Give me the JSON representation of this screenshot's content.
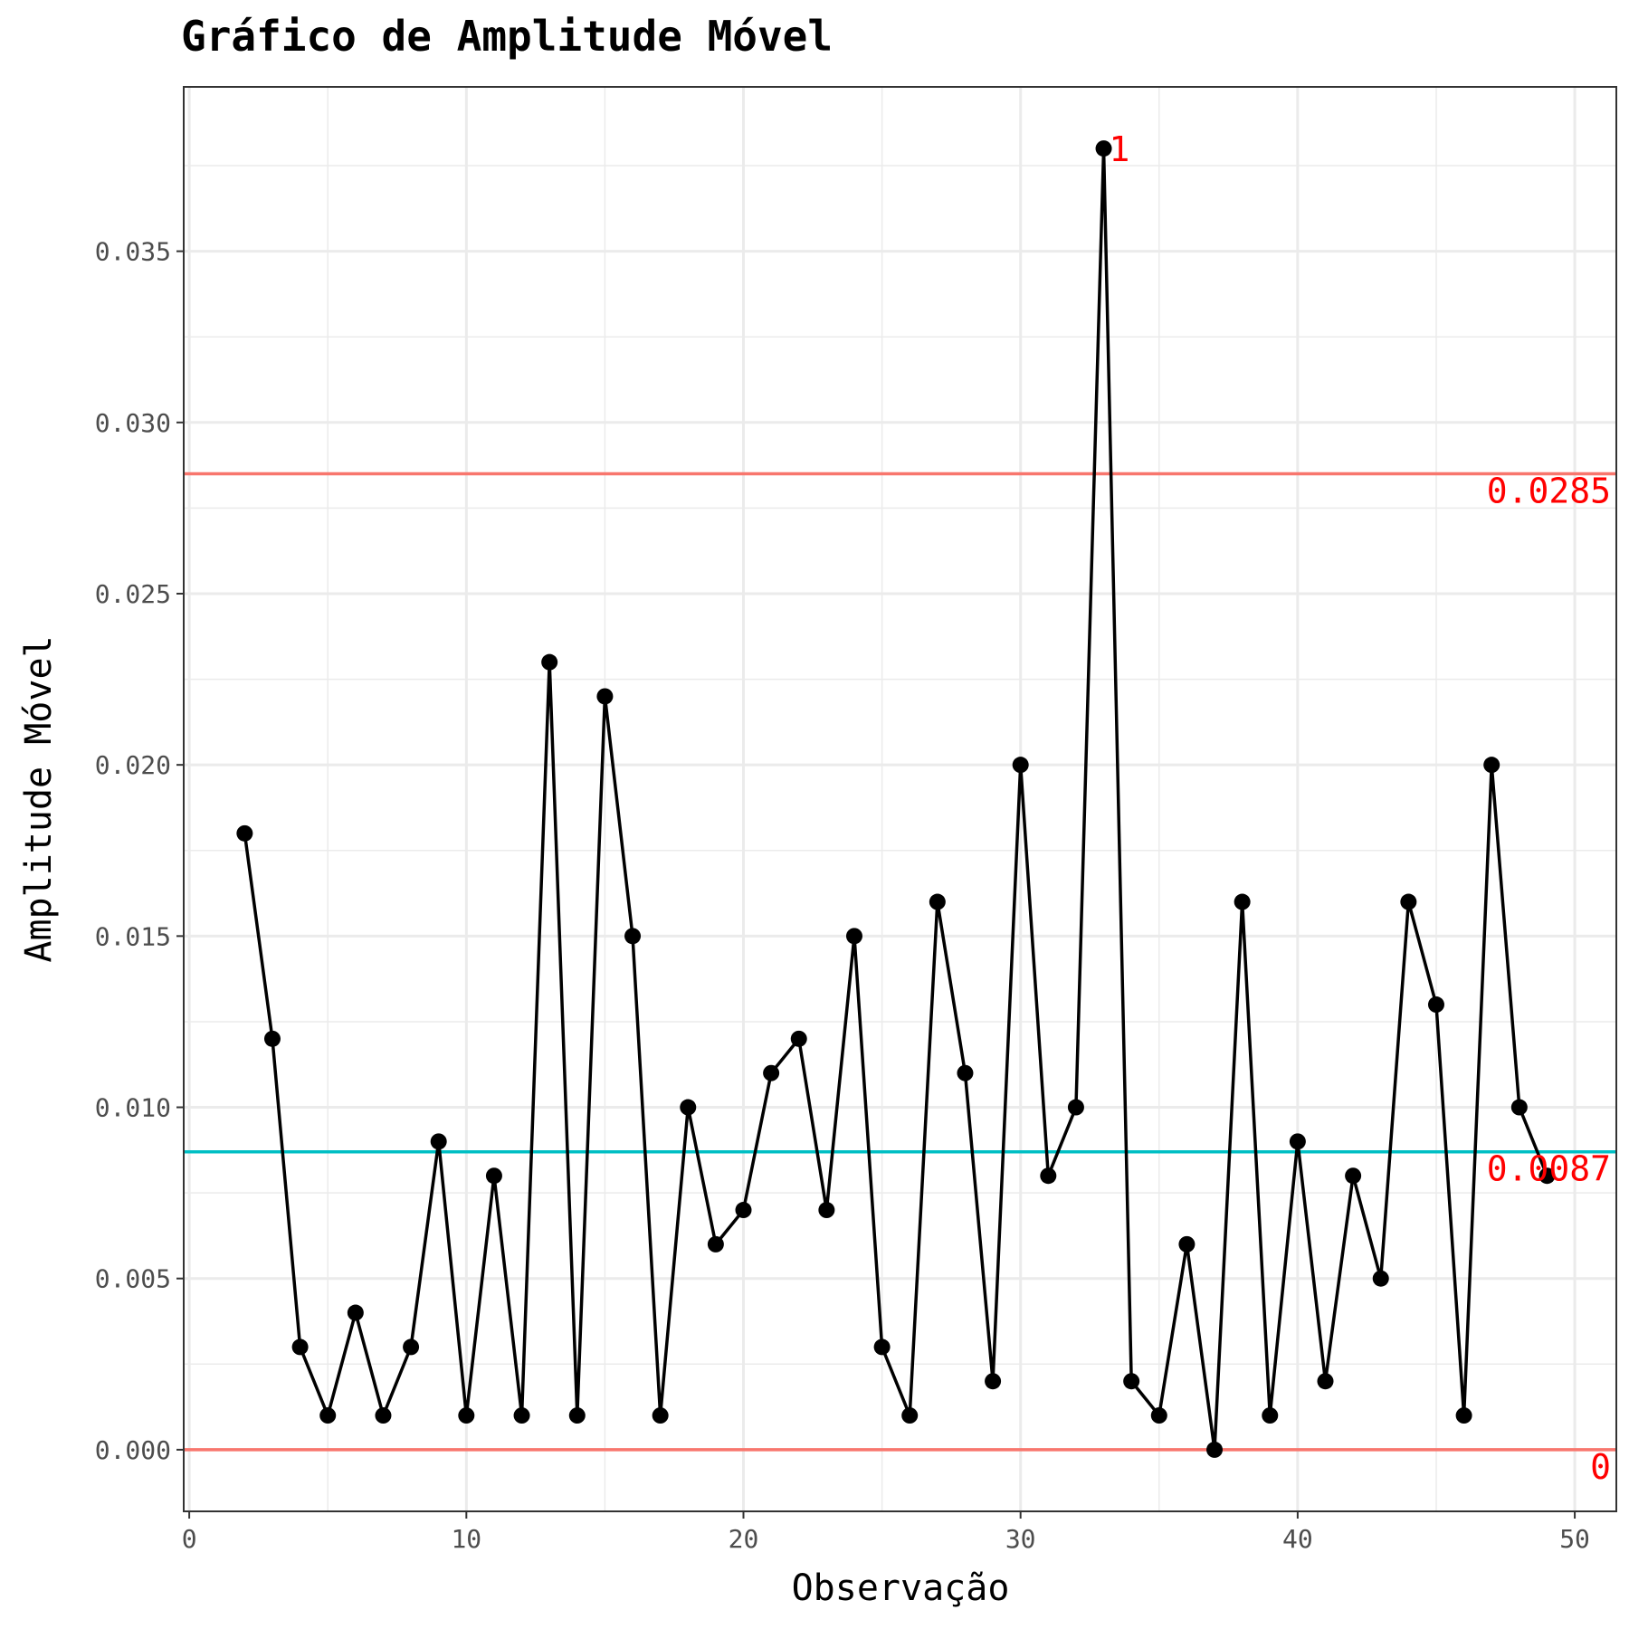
{
  "chart_data": {
    "type": "line",
    "title": "Gráfico de Amplitude Móvel",
    "xlabel": "Observação",
    "ylabel": "Amplitude Móvel",
    "xlim": [
      -0.2,
      51.5
    ],
    "ylim": [
      -0.0018,
      0.0398
    ],
    "x_ticks": [
      0,
      10,
      20,
      30,
      40,
      50
    ],
    "x_tick_labels": [
      "0",
      "10",
      "20",
      "30",
      "40",
      "50"
    ],
    "y_ticks": [
      0,
      0.005,
      0.01,
      0.015,
      0.02,
      0.025,
      0.03,
      0.035
    ],
    "y_tick_labels": [
      "0.000",
      "0.005",
      "0.010",
      "0.015",
      "0.020",
      "0.025",
      "0.030",
      "0.035"
    ],
    "grid": true,
    "series": [
      {
        "x": [
          2,
          3,
          4,
          5,
          6,
          7,
          8,
          9,
          10,
          11,
          12,
          13,
          14,
          15,
          16,
          17,
          18,
          19,
          20,
          21,
          22,
          23,
          24,
          25,
          26,
          27,
          28,
          29,
          30,
          31,
          32,
          33,
          34,
          35,
          36,
          37,
          38,
          39,
          40,
          41,
          42,
          43,
          44,
          45,
          46,
          47,
          48,
          49
        ],
        "values": [
          0.018,
          0.012,
          0.003,
          0.001,
          0.004,
          0.001,
          0.003,
          0.009,
          0.001,
          0.008,
          0.001,
          0.023,
          0.001,
          0.022,
          0.015,
          0.001,
          0.01,
          0.006,
          0.007,
          0.011,
          0.012,
          0.007,
          0.015,
          0.003,
          0.001,
          0.016,
          0.011,
          0.002,
          0.02,
          0.008,
          0.01,
          0.038,
          0.002,
          0.001,
          0.006,
          0.0,
          0.016,
          0.001,
          0.009,
          0.002,
          0.008,
          0.005,
          0.016,
          0.013,
          0.001,
          0.02,
          0.01,
          0.008
        ],
        "color": "#000000"
      }
    ],
    "control_limits": [
      {
        "value": 0.0285,
        "label": "0.0285",
        "color": "#F8766D"
      },
      {
        "value": 0.0087,
        "label": "0.0087",
        "color": "#00BFC4"
      },
      {
        "value": 0,
        "label": "0",
        "color": "#F8766D"
      }
    ],
    "annotations": [
      {
        "x": 33,
        "y": 0.038,
        "text": "1",
        "color": "#FF0000"
      }
    ]
  }
}
